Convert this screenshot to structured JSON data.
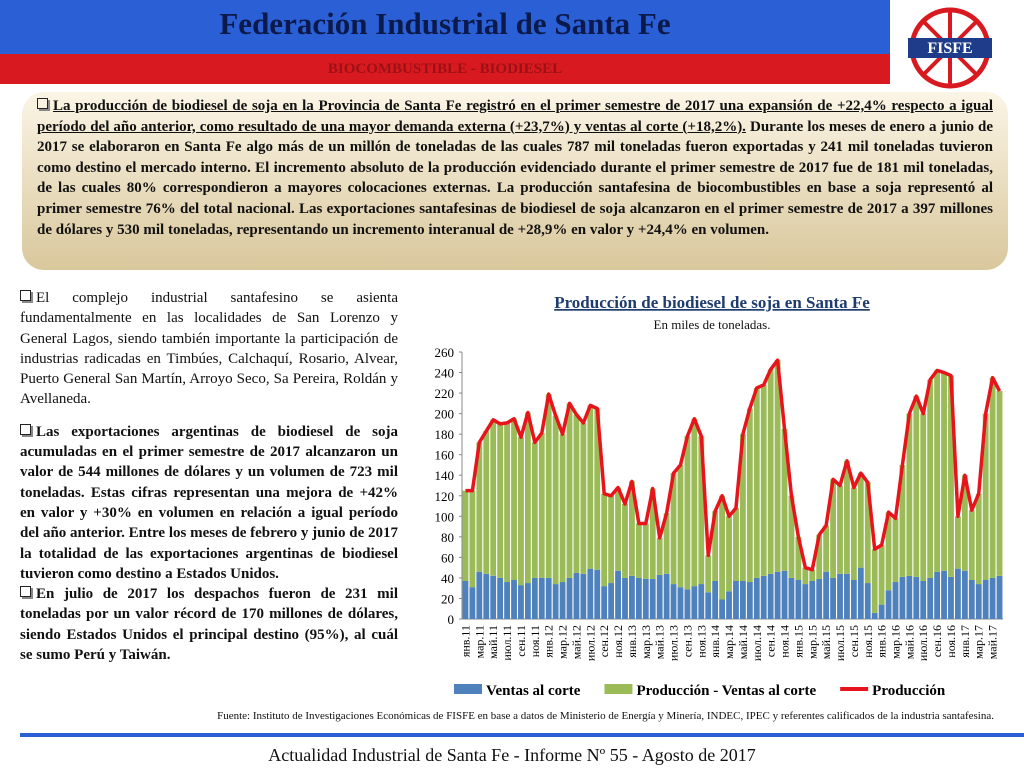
{
  "header": {
    "title": "Federación Industrial de Santa Fe",
    "subtitle": "BIOCOMBUSTIBLE - BIODIESEL",
    "logo": "FISFE"
  },
  "box": {
    "lead": "La producción de biodiesel de soja en la Provincia de Santa Fe registró en el primer semestre de 2017 una expansión de +22,4% respecto a igual período del año anterior, como resultado de una mayor demanda externa (+23,7%) y ventas al corte (+18,2%).",
    "text": "Durante los meses de enero a junio de 2017 se elaboraron en Santa Fe algo más de un millón de toneladas de las cuales 787 mil toneladas fueron exportadas y 241 mil toneladas tuvieron como destino el mercado interno. El incremento absoluto de la producción evidenciado durante el primer semestre de 2017 fue de 181 mil toneladas, de las cuales 80% correspondieron a mayores colocaciones externas. La producción santafesina de biocombustibles en base a soja representó al primer semestre 76% del total nacional. Las exportaciones santafesinas de biodiesel de soja alcanzaron en el primer semestre de 2017 a 397 millones de dólares y 530 mil toneladas, representando un incremento interanual de +28,9% en valor y +24,4% en volumen."
  },
  "bullets": [
    "El complejo industrial santafesino se asienta fundamentalmente en las localidades de San Lorenzo y General Lagos, siendo también importante la participación de industrias radicadas en Timbúes, Calchaquí, Rosario, Alvear, Puerto General San Martín, Arroyo Seco, Sa Pereira, Roldán y Avellaneda.",
    "Las exportaciones argentinas de biodiesel de soja acumuladas en el primer semestre de 2017 alcanzaron un valor de 544 millones de dólares y un volumen de 723 mil toneladas. Estas cifras representan una mejora de +42% en valor y +30% en volumen en relación a igual período del año anterior. Entre los meses de febrero y junio de 2017 la totalidad de las exportaciones argentinas de biodiesel tuvieron como destino a Estados Unidos.",
    "En julio de 2017 los despachos fueron de 231 mil toneladas por un valor récord de 170 millones de dólares, siendo Estados Unidos el principal destino (95%), al cuál se sumo Perú y Taiwán."
  ],
  "source": "Fuente: Instituto de Investigaciones Económicas de  FISFE en base a datos de Ministerio de Energía y Minería, INDEC, IPEC y referentes calificados de la industria santafesina.",
  "footer": "Actualidad Industrial de Santa Fe - Informe Nº 55 - Agosto de 2017",
  "chart_data": {
    "type": "bar",
    "stacked": true,
    "title": "Producción de biodiesel de soja en Santa Fe",
    "subtitle": "En miles de toneladas.",
    "categories": [
      "янв.11",
      null,
      "мар.11",
      null,
      "май.11",
      null,
      "июл.11",
      null,
      "сен.11",
      null,
      "ноя.11",
      null,
      "янв.12",
      null,
      "мар.12",
      null,
      "май.12",
      null,
      "июл.12",
      null,
      "сен.12",
      null,
      "ноя.12",
      null,
      "янв.13",
      null,
      "мар.13",
      null,
      "май.13",
      null,
      "июл.13",
      null,
      "сен.13",
      null,
      "ноя.13",
      null,
      "янв.14",
      null,
      "мар.14",
      null,
      "май.14",
      null,
      "июл.14",
      null,
      "сен.14",
      null,
      "ноя.14",
      null,
      "янв.15",
      null,
      "мар.15",
      null,
      "май.15",
      null,
      "июл.15",
      null,
      "сен.15",
      null,
      "ноя.15",
      null,
      "янв.16",
      null,
      "мар.16",
      null,
      "май.16",
      null,
      "июл.16",
      null,
      "сен.16",
      null,
      "ноя.16",
      null,
      "янв.17",
      null,
      "мар.17",
      null,
      "май.17",
      null
    ],
    "series": [
      {
        "name": "Ventas al corte",
        "color": "#4f81bd",
        "values": [
          37,
          31,
          46,
          44,
          42,
          40,
          36,
          38,
          33,
          35,
          40,
          40,
          40,
          34,
          36,
          40,
          45,
          44,
          49,
          48,
          32,
          35,
          47,
          40,
          42,
          40,
          39,
          39,
          43,
          44,
          34,
          31,
          29,
          32,
          34,
          26,
          37,
          19,
          27,
          37,
          37,
          36,
          40,
          42,
          44,
          46,
          47,
          40,
          38,
          34,
          37,
          39,
          46,
          40,
          44,
          44,
          38,
          50,
          35,
          6,
          14,
          28,
          36,
          41,
          42,
          41,
          37,
          40,
          46,
          47,
          41,
          49,
          47,
          38,
          34,
          38,
          40,
          42
        ]
      },
      {
        "name": "Producción - Ventas al corte",
        "color": "#9bbb59",
        "values": [
          88,
          94,
          126,
          139,
          152,
          150,
          155,
          157,
          144,
          166,
          132,
          141,
          179,
          164,
          144,
          170,
          154,
          147,
          159,
          157,
          90,
          85,
          81,
          72,
          92,
          53,
          54,
          88,
          36,
          59,
          108,
          119,
          149,
          163,
          144,
          36,
          68,
          101,
          73,
          71,
          143,
          169,
          185,
          186,
          199,
          206,
          138,
          80,
          42,
          16,
          11,
          43,
          45,
          96,
          86,
          110,
          90,
          92,
          98,
          62,
          58,
          76,
          62,
          109,
          158,
          176,
          163,
          193,
          196,
          193,
          196,
          51,
          93,
          68,
          88,
          162,
          195,
          180
        ]
      },
      {
        "name": "Producción",
        "color": "#e8141b",
        "type": "line",
        "values": [
          125,
          125,
          172,
          183,
          194,
          190,
          191,
          195,
          177,
          201,
          172,
          181,
          219,
          198,
          180,
          210,
          199,
          191,
          208,
          205,
          122,
          120,
          128,
          112,
          134,
          93,
          93,
          127,
          79,
          103,
          142,
          150,
          178,
          195,
          178,
          62,
          105,
          120,
          100,
          108,
          180,
          205,
          225,
          228,
          243,
          252,
          185,
          120,
          80,
          50,
          48,
          82,
          91,
          136,
          130,
          154,
          128,
          142,
          133,
          68,
          72,
          104,
          98,
          150,
          200,
          217,
          200,
          233,
          242,
          240,
          237,
          100,
          140,
          106,
          122,
          200,
          235,
          222
        ]
      }
    ],
    "ylim": [
      0,
      260
    ],
    "yticks": [
      0,
      20,
      40,
      60,
      80,
      100,
      120,
      140,
      160,
      180,
      200,
      220,
      240,
      260
    ],
    "legend": "bottom"
  }
}
